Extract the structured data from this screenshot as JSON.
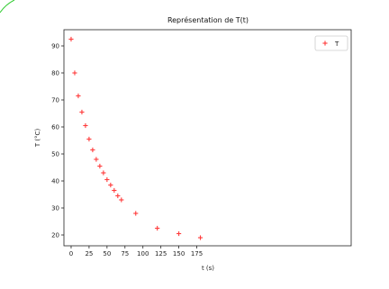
{
  "chart_data": {
    "type": "scatter",
    "title": "Représentation de T(t)",
    "xlabel": "t (s)",
    "ylabel": "T (°C)",
    "xlim": [
      -10,
      390
    ],
    "ylim": [
      16,
      96
    ],
    "x_ticks": [
      0,
      25,
      50,
      75,
      100,
      125,
      150,
      175
    ],
    "y_ticks": [
      20,
      30,
      40,
      50,
      60,
      70,
      80,
      90
    ],
    "grid": false,
    "legend": "top-right",
    "marker": "+",
    "color": "#ff3b3b",
    "series": [
      {
        "name": "T",
        "x": [
          0,
          5,
          10,
          15,
          20,
          25,
          30,
          35,
          40,
          45,
          50,
          55,
          60,
          65,
          70,
          90,
          120,
          150,
          180
        ],
        "y": [
          92.5,
          80,
          71.5,
          65.5,
          60.5,
          55.5,
          51.5,
          48,
          45.5,
          43,
          40.5,
          38.5,
          36.5,
          34.5,
          33,
          28,
          22.5,
          20.5,
          19
        ]
      }
    ]
  }
}
